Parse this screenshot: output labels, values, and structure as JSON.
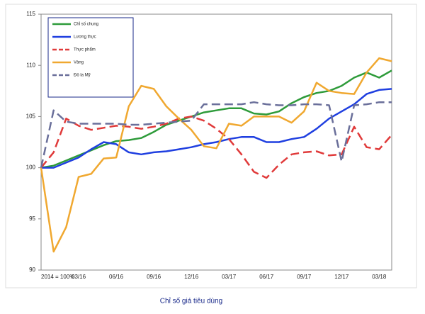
{
  "chart_data": {
    "type": "line",
    "xlabel": "Chỉ số giá tiêu dùng",
    "categories": [
      "2014 = 100%",
      null,
      null,
      "03/16",
      null,
      null,
      "06/16",
      null,
      null,
      "09/16",
      null,
      null,
      "12/16",
      null,
      null,
      "03/17",
      null,
      null,
      "06/17",
      null,
      null,
      "09/17",
      null,
      null,
      "12/17",
      null,
      null,
      "03/18",
      null
    ],
    "ylim": [
      90,
      115
    ],
    "yticks": [
      90,
      95,
      100,
      105,
      110,
      115
    ],
    "grid": false,
    "legend": "upper left",
    "series": [
      {
        "name": "Chỉ số chung",
        "color": "#2e9b3a",
        "dash": false,
        "values": [
          100,
          100.2,
          100.7,
          101.2,
          101.7,
          102.2,
          102.6,
          102.7,
          102.9,
          103.5,
          104.2,
          104.6,
          105,
          105.4,
          105.6,
          105.8,
          105.8,
          105.3,
          105.2,
          105.5,
          106.3,
          106.9,
          107.3,
          107.5,
          108,
          108.8,
          109.3,
          108.8,
          109.5
        ]
      },
      {
        "name": "Lương thực",
        "color": "#1f3fe0",
        "dash": false,
        "values": [
          100,
          100,
          100.5,
          101,
          101.8,
          102.5,
          102.3,
          101.5,
          101.3,
          101.5,
          101.6,
          101.8,
          102,
          102.3,
          102.5,
          102.8,
          103,
          103,
          102.5,
          102.5,
          102.8,
          103,
          103.8,
          104.8,
          105.5,
          106.2,
          107.2,
          107.6,
          107.7
        ]
      },
      {
        "name": "Thực phẩm",
        "color": "#e03a3a",
        "dash": true,
        "values": [
          100,
          101.5,
          104.8,
          104.1,
          103.7,
          103.9,
          104.1,
          104,
          103.8,
          104,
          104.3,
          104.8,
          105,
          104.6,
          103.8,
          102.8,
          101.3,
          99.6,
          99,
          100.3,
          101.3,
          101.5,
          101.6,
          101.2,
          101.3,
          104,
          102,
          101.8,
          103.2
        ]
      },
      {
        "name": "Vàng",
        "color": "#f0a830",
        "dash": false,
        "values": [
          100,
          91.8,
          94.2,
          99.1,
          99.4,
          100.9,
          101,
          106,
          108,
          107.7,
          106,
          104.8,
          103.7,
          102.1,
          101.9,
          104.3,
          104.1,
          105,
          105,
          105,
          104.4,
          105.5,
          108.3,
          107.5,
          107.3,
          107.2,
          109.3,
          110.7,
          110.4
        ]
      },
      {
        "name": "Đô la Mỹ",
        "color": "#6a6f9a",
        "dash": true,
        "values": [
          100,
          105.6,
          104.5,
          104.3,
          104.3,
          104.3,
          104.3,
          104.2,
          104.2,
          104.3,
          104.4,
          104.5,
          104.6,
          106.2,
          106.2,
          106.2,
          106.2,
          106.4,
          106.2,
          106.1,
          106.1,
          106.2,
          106.2,
          106.1,
          100.6,
          106.1,
          106.2,
          106.4,
          106.4
        ]
      }
    ]
  }
}
